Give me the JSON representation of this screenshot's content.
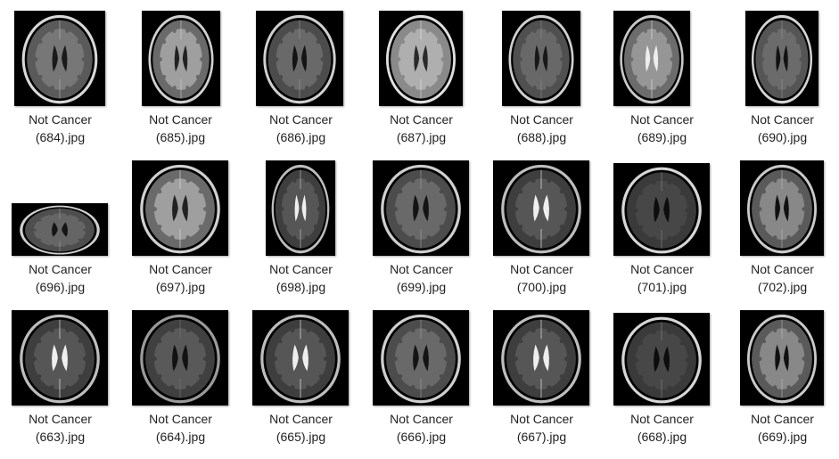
{
  "files": [
    {
      "line1": "Not Cancer",
      "line2": "(684).jpg"
    },
    {
      "line1": "Not Cancer",
      "line2": "(685).jpg"
    },
    {
      "line1": "Not Cancer",
      "line2": "(686).jpg"
    },
    {
      "line1": "Not Cancer",
      "line2": "(687).jpg"
    },
    {
      "line1": "Not Cancer",
      "line2": "(688).jpg"
    },
    {
      "line1": "Not Cancer",
      "line2": "(689).jpg"
    },
    {
      "line1": "Not Cancer",
      "line2": "(690).jpg"
    },
    {
      "line1": "Not Cancer",
      "line2": "(696).jpg"
    },
    {
      "line1": "Not Cancer",
      "line2": "(697).jpg"
    },
    {
      "line1": "Not Cancer",
      "line2": "(698).jpg"
    },
    {
      "line1": "Not Cancer",
      "line2": "(699).jpg"
    },
    {
      "line1": "Not Cancer",
      "line2": "(700).jpg"
    },
    {
      "line1": "Not Cancer",
      "line2": "(701).jpg"
    },
    {
      "line1": "Not Cancer",
      "line2": "(702).jpg"
    },
    {
      "line1": "Not Cancer",
      "line2": "(663).jpg"
    },
    {
      "line1": "Not Cancer",
      "line2": "(664).jpg"
    },
    {
      "line1": "Not Cancer",
      "line2": "(665).jpg"
    },
    {
      "line1": "Not Cancer",
      "line2": "(666).jpg"
    },
    {
      "line1": "Not Cancer",
      "line2": "(667).jpg"
    },
    {
      "line1": "Not Cancer",
      "line2": "(668).jpg"
    },
    {
      "line1": "Not Cancer",
      "line2": "(669).jpg"
    }
  ],
  "thumbnail_icon": "mri-brain-scan-icon",
  "colors": {
    "background": "#ffffff",
    "caption_text": "#1f1f1f",
    "thumb_background": "#000000"
  }
}
